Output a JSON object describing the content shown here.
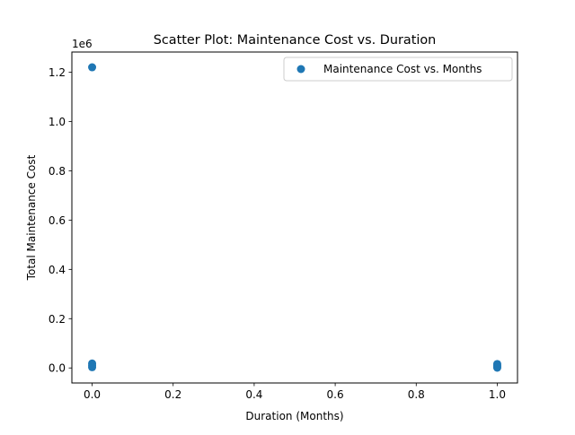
{
  "chart_data": {
    "type": "scatter",
    "title": "Scatter Plot: Maintenance Cost vs. Duration",
    "xlabel": "Duration (Months)",
    "ylabel": "Total Maintenance Cost",
    "y_offset_label": "1e6",
    "y_scale_factor": 1000000,
    "xlim": [
      -0.05,
      1.05
    ],
    "ylim": [
      -61000,
      1282000
    ],
    "xticks": [
      0.0,
      0.2,
      0.4,
      0.6,
      0.8,
      1.0
    ],
    "xtick_labels": [
      "0.0",
      "0.2",
      "0.4",
      "0.6",
      "0.8",
      "1.0"
    ],
    "yticks": [
      0,
      200000,
      400000,
      600000,
      800000,
      1000000,
      1200000
    ],
    "ytick_labels": [
      "0.0",
      "0.2",
      "0.4",
      "0.6",
      "0.8",
      "1.0",
      "1.2"
    ],
    "grid": false,
    "legend_position": "top-right",
    "marker_color": "#1f77b4",
    "series": [
      {
        "name": "Maintenance Cost vs. Months",
        "points": [
          {
            "x": 0,
            "y": 1220000
          },
          {
            "x": 0,
            "y": 18000
          },
          {
            "x": 0,
            "y": 10000
          },
          {
            "x": 0,
            "y": 3000
          },
          {
            "x": 1,
            "y": 16000
          },
          {
            "x": 1,
            "y": 10000
          },
          {
            "x": 1,
            "y": 5000
          },
          {
            "x": 1,
            "y": 1000
          }
        ]
      }
    ]
  }
}
